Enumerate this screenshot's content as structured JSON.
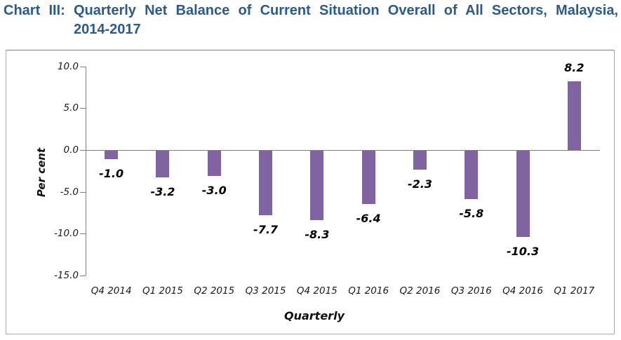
{
  "title": {
    "line1": "Chart III: Quarterly Net Balance of Current Situation Overall of All Sectors, Malaysia,",
    "line2": "2014-2017"
  },
  "colors": {
    "title_blue": "#2B5A8E",
    "bar_purple": "#8064A2",
    "axis_gray": "#808080"
  },
  "chart_data": {
    "type": "bar",
    "title": "Chart III: Quarterly Net Balance of Current Situation Overall of All Sectors, Malaysia, 2014-2017",
    "categories": [
      "Q4 2014",
      "Q1 2015",
      "Q2 2015",
      "Q3 2015",
      "Q4 2015",
      "Q1 2016",
      "Q2 2016",
      "Q3 2016",
      "Q4 2016",
      "Q1 2017"
    ],
    "values": [
      -1.0,
      -3.2,
      -3.0,
      -7.7,
      -8.3,
      -6.4,
      -2.3,
      -5.8,
      -10.3,
      8.2
    ],
    "data_labels": [
      "-1.0",
      "-3.2",
      "-3.0",
      "-7.7",
      "-8.3",
      "-6.4",
      "-2.3",
      "-5.8",
      "-10.3",
      "8.2"
    ],
    "xlabel": "Quarterly",
    "ylabel": "Per cent",
    "ylim": [
      -15,
      10
    ],
    "ytick_step": 5,
    "ytick_labels": [
      "10.0",
      "5.0",
      "0.0",
      "-5.0",
      "-10.0",
      "-15.0"
    ],
    "grid": false,
    "legend": "none",
    "bar_color": "#8064A2"
  }
}
